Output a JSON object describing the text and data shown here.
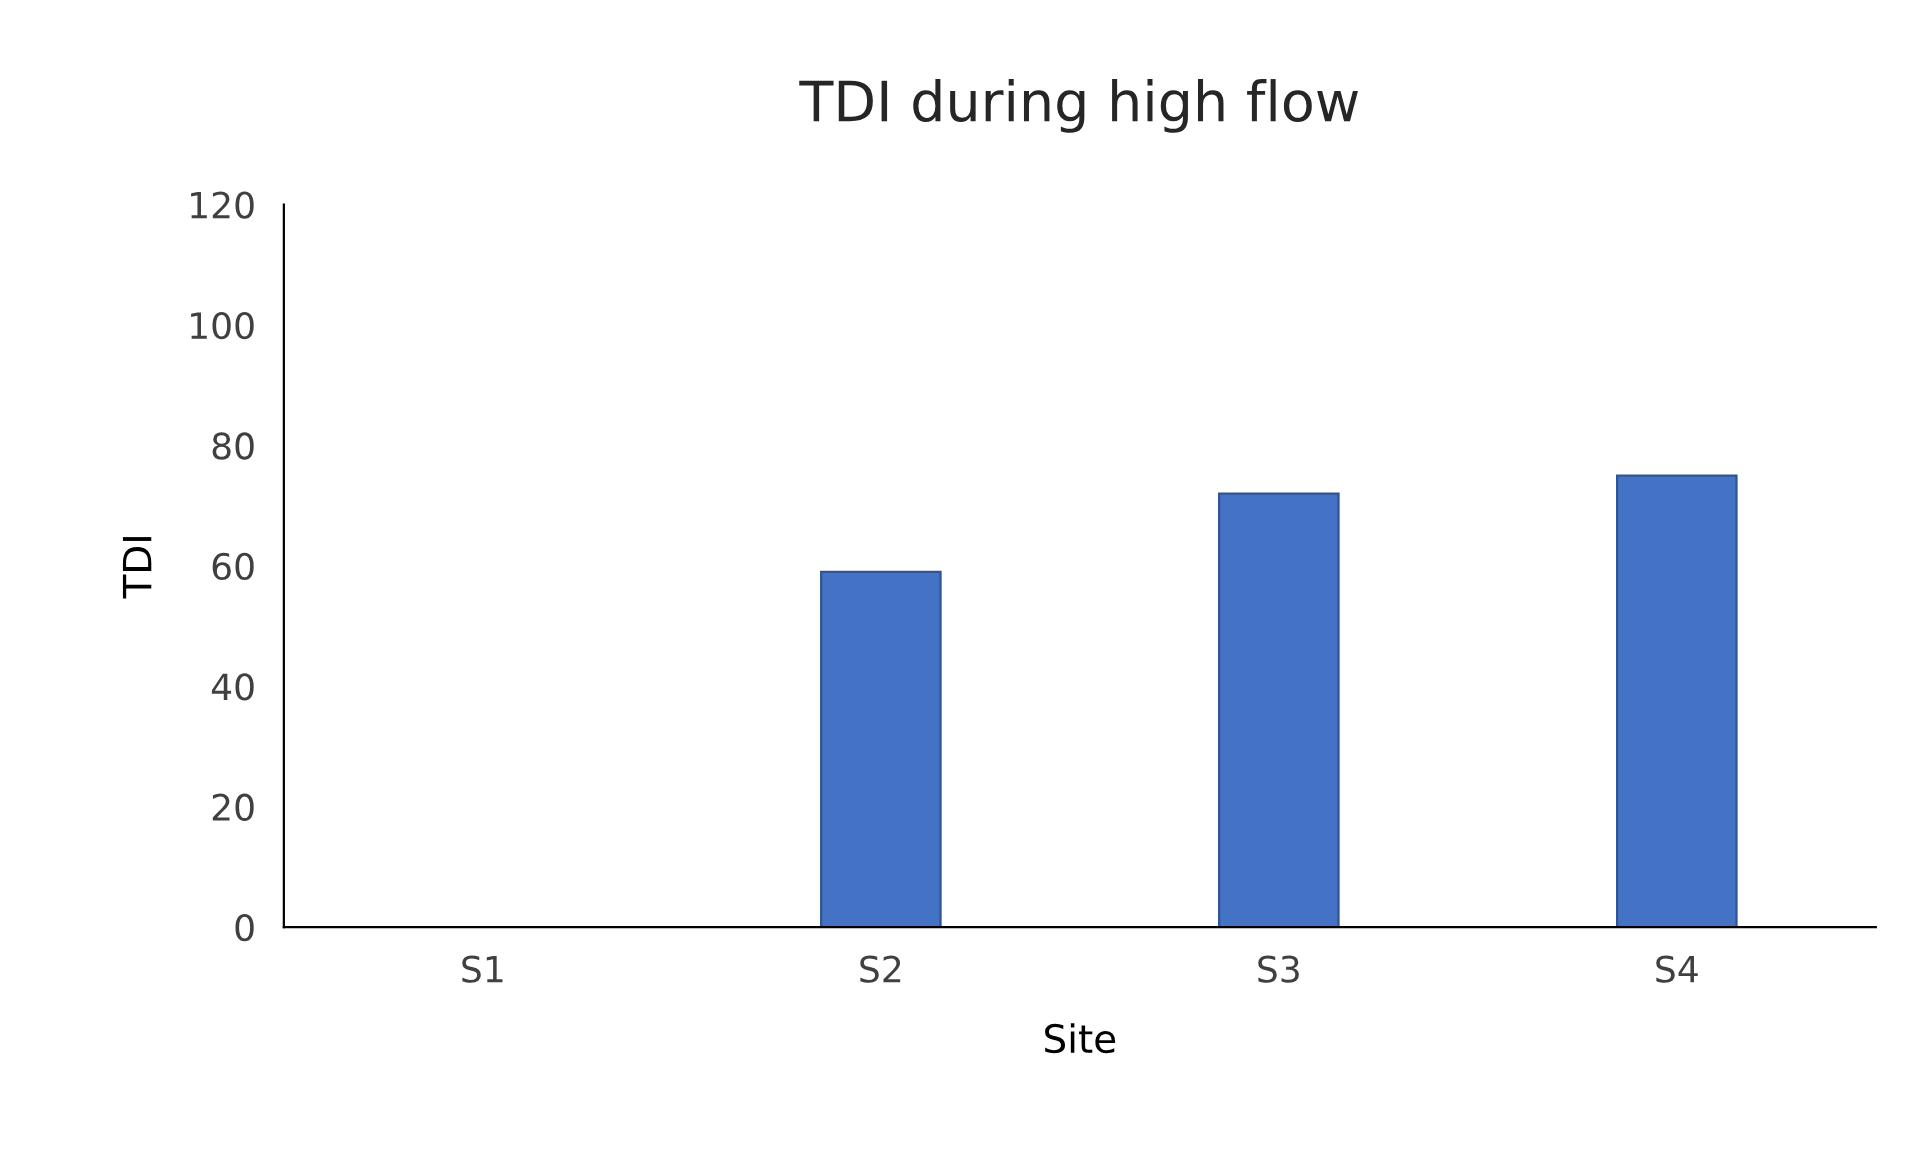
{
  "chart_data": {
    "type": "bar",
    "title": "TDI during high flow",
    "xlabel": "Site",
    "ylabel": "TDI",
    "categories": [
      "S1",
      "S2",
      "S3",
      "S4"
    ],
    "values": [
      null,
      59,
      72,
      75
    ],
    "color": "#4472c4",
    "ylim": [
      0,
      120
    ],
    "yticks": [
      0,
      20,
      40,
      60,
      80,
      100,
      120
    ],
    "grid": false,
    "legend": false
  }
}
